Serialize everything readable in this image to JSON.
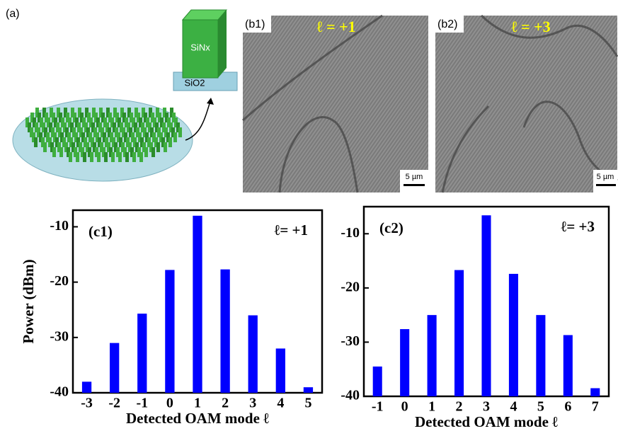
{
  "figure": {
    "panel_a": "(a)",
    "pillar_top": "SiNx",
    "pillar_base": "SiO2",
    "b1": {
      "label": "(b1)",
      "mode": "ℓ = +1",
      "scale": "5 µm"
    },
    "b2": {
      "label": "(b2)",
      "mode": "ℓ = +3",
      "scale": "5 µm"
    }
  },
  "chart_data": [
    {
      "type": "bar",
      "panel": "(c1)",
      "annotation": "ℓ= +1",
      "ylabel": "Power (dBm)",
      "xlabel": "Detected OAM mode ℓ",
      "categories": [
        "-3",
        "-2",
        "-1",
        "0",
        "1",
        "2",
        "3",
        "4",
        "5"
      ],
      "values": [
        -38,
        -31,
        -25.7,
        -17.8,
        -8,
        -17.7,
        -26,
        -32,
        -39
      ],
      "color": "#0000ff",
      "ylim": [
        -40,
        -7
      ],
      "yticks": [
        -40,
        -30,
        -20,
        -10
      ]
    },
    {
      "type": "bar",
      "panel": "(c2)",
      "annotation": "ℓ= +3",
      "xlabel": "Detected OAM mode ℓ",
      "categories": [
        "-1",
        "0",
        "1",
        "2",
        "3",
        "4",
        "5",
        "6",
        "7"
      ],
      "values": [
        -34.5,
        -27.6,
        -25,
        -16.7,
        -6.6,
        -17.4,
        -25,
        -28.7,
        -38.5
      ],
      "color": "#0000ff",
      "ylim": [
        -40,
        -5
      ],
      "yticks": [
        -40,
        -30,
        -20,
        -10
      ]
    }
  ]
}
